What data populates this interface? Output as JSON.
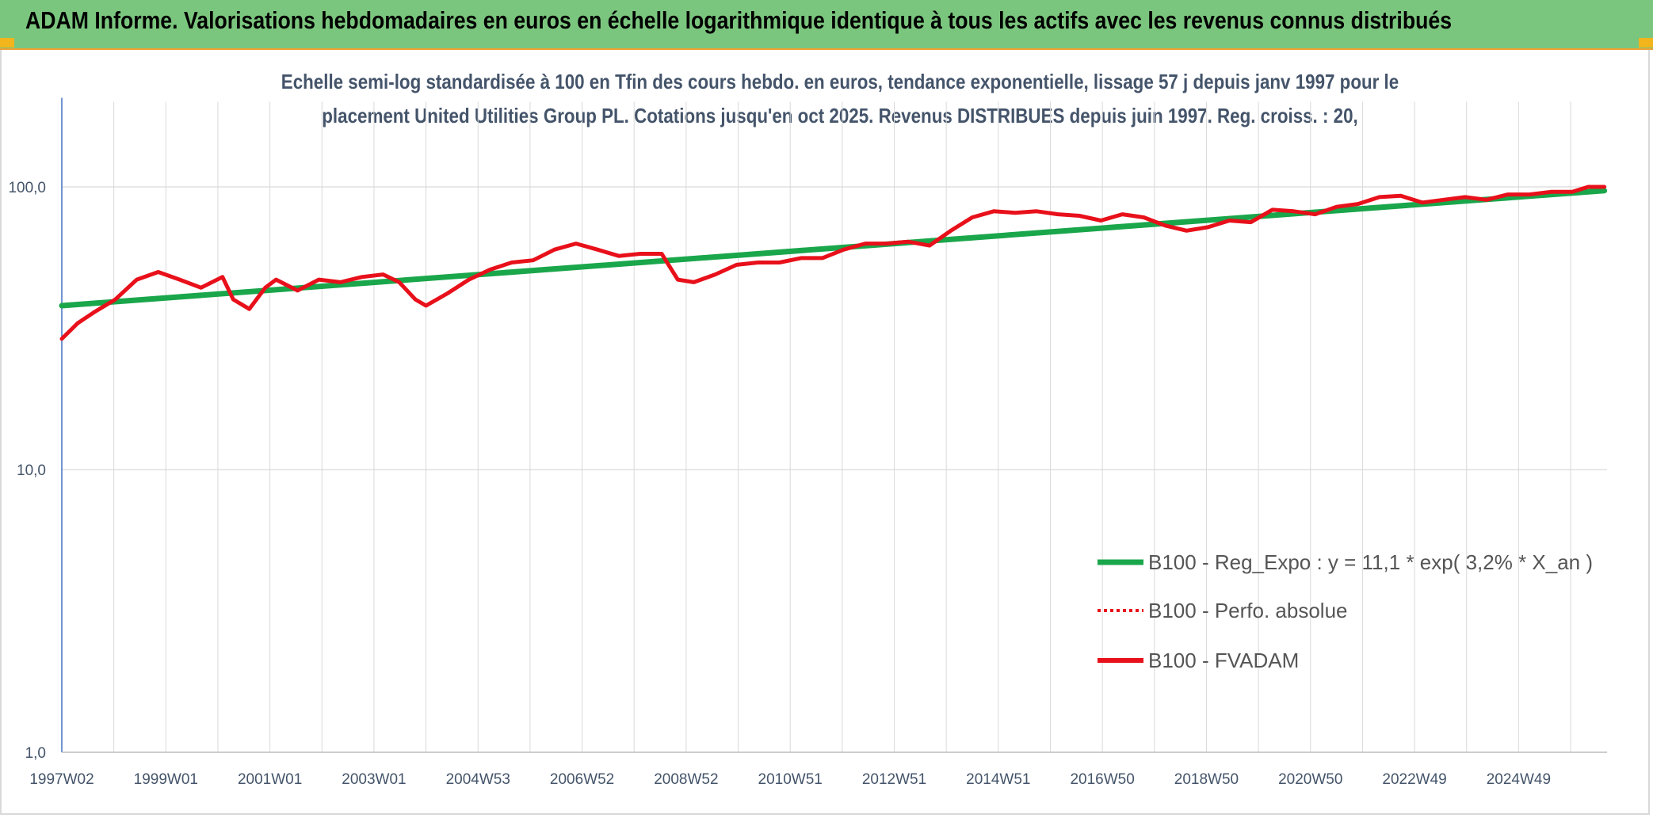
{
  "header": {
    "title": "ADAM Informe. Valorisations hebdomadaires en euros en échelle logarithmique identique à tous les actifs avec les revenus connus distribués"
  },
  "colors": {
    "header_bg": "#7bc67e",
    "accent_corner": "#f2b51c",
    "regression": "#1aa64b",
    "fvadam": "#e8101a",
    "perfo": "#e8101a",
    "text": "#44546a",
    "grid": "#d9d9d9",
    "axis": "#4472c4"
  },
  "chart_data": {
    "type": "line",
    "title_line1": "Echelle semi-log standardisée à 100 en Tfin des cours hebdo. en euros, tendance exponentielle, lissage 57 j depuis janv 1997 pour le",
    "title_line2": "placement United Utilities Group PL. Cotations jusqu'en oct 2025. Revenus DISTRIBUES depuis juin 1997. Reg. croiss. : 20,",
    "y_scale": "log",
    "ylim": [
      1,
      200
    ],
    "y_ticks": [
      "1,0",
      "10,0",
      "100,0"
    ],
    "x_tick_labels": [
      "1997W02",
      "1999W01",
      "2001W01",
      "2003W01",
      "2004W53",
      "2006W52",
      "2008W52",
      "2010W51",
      "2012W51",
      "2014W51",
      "2016W50",
      "2018W50",
      "2020W50",
      "2022W49",
      "2024W49"
    ],
    "xlim": [
      1997.0,
      2025.85
    ],
    "grid": true,
    "legend_position": "bottom-right",
    "series": [
      {
        "name": "B100 - Reg_Expo : y = 11,1 * exp( 3,2% *  X_an )",
        "style": "solid-thick",
        "color": "#1aa64b",
        "x": [
          1997.0,
          2025.8
        ],
        "y": [
          38,
          97
        ]
      },
      {
        "name": "B100 - Perfo. absolue",
        "style": "dotted",
        "color": "#e8101a",
        "x": [],
        "y": []
      },
      {
        "name": "B100 - FVADAM",
        "style": "solid",
        "color": "#e8101a",
        "x": [
          1997.0,
          1997.3,
          1997.6,
          1998.0,
          1998.4,
          1998.8,
          1999.2,
          1999.6,
          2000.0,
          2000.2,
          2000.5,
          2000.8,
          2001.0,
          2001.4,
          2001.8,
          2002.2,
          2002.6,
          2003.0,
          2003.3,
          2003.6,
          2003.8,
          2004.2,
          2004.6,
          2005.0,
          2005.4,
          2005.8,
          2006.2,
          2006.6,
          2007.0,
          2007.4,
          2007.8,
          2008.2,
          2008.5,
          2008.8,
          2009.2,
          2009.6,
          2010.0,
          2010.4,
          2010.8,
          2011.2,
          2011.6,
          2012.0,
          2012.4,
          2012.8,
          2013.2,
          2013.6,
          2014.0,
          2014.4,
          2014.8,
          2015.2,
          2015.6,
          2016.0,
          2016.4,
          2016.8,
          2017.2,
          2017.6,
          2018.0,
          2018.4,
          2018.8,
          2019.2,
          2019.6,
          2020.0,
          2020.4,
          2020.8,
          2021.2,
          2021.6,
          2022.0,
          2022.4,
          2022.8,
          2023.2,
          2023.6,
          2024.0,
          2024.4,
          2024.8,
          2025.2,
          2025.5,
          2025.8
        ],
        "y": [
          29,
          33,
          36,
          40,
          47,
          50,
          47,
          44,
          48,
          40,
          37,
          44,
          47,
          43,
          47,
          46,
          48,
          49,
          46,
          40,
          38,
          42,
          47,
          51,
          54,
          55,
          60,
          63,
          60,
          57,
          58,
          58,
          47,
          46,
          49,
          53,
          54,
          54,
          56,
          56,
          60,
          63,
          63,
          64,
          62,
          70,
          78,
          82,
          81,
          82,
          80,
          79,
          76,
          80,
          78,
          73,
          70,
          72,
          76,
          75,
          83,
          82,
          80,
          85,
          87,
          92,
          93,
          88,
          90,
          92,
          90,
          94,
          94,
          96,
          96,
          100,
          100
        ]
      }
    ]
  }
}
